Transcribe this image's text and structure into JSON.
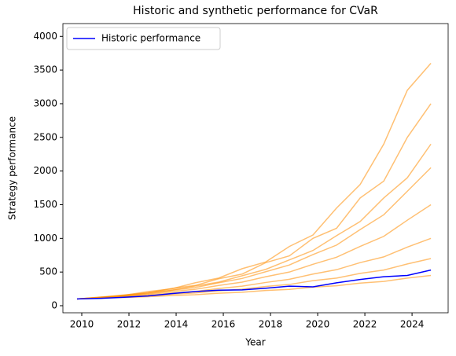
{
  "chart_data": {
    "type": "line",
    "title": "Historic and synthetic performance for CVaR",
    "x_label": "Year",
    "y_label": "Strategy performance",
    "x": [
      2009.8,
      2010.8,
      2011.8,
      2012.8,
      2013.8,
      2014.8,
      2015.8,
      2016.8,
      2017.8,
      2018.8,
      2019.8,
      2020.8,
      2021.8,
      2022.8,
      2023.8,
      2024.8
    ],
    "xlim": [
      2009.2,
      2025.53
    ],
    "xticks": [
      2010,
      2012,
      2014,
      2016,
      2018,
      2020,
      2022,
      2024
    ],
    "ylim": [
      -105,
      4190
    ],
    "yticks": [
      0,
      500,
      1000,
      1500,
      2000,
      2500,
      3000,
      3500,
      4000
    ],
    "legend": "upper left",
    "series": [
      {
        "color": "#ff8c00",
        "values": [
          100,
          130,
          155,
          210,
          250,
          340,
          410,
          550,
          650,
          880,
          1050,
          1450,
          1800,
          2400,
          3200,
          3600
        ]
      },
      {
        "color": "#ff8c00",
        "values": [
          100,
          122,
          160,
          190,
          255,
          300,
          400,
          470,
          640,
          740,
          1000,
          1150,
          1600,
          1850,
          2500,
          3000
        ]
      },
      {
        "color": "#ff8c00",
        "values": [
          100,
          124,
          150,
          192,
          230,
          292,
          350,
          445,
          540,
          680,
          820,
          1040,
          1250,
          1600,
          1900,
          2400
        ]
      },
      {
        "color": "#ff8c00",
        "values": [
          100,
          122,
          152,
          180,
          228,
          270,
          340,
          405,
          505,
          605,
          760,
          900,
          1130,
          1350,
          1700,
          2050
        ]
      },
      {
        "color": "#ff8c00",
        "values": [
          100,
          120,
          146,
          170,
          210,
          243,
          300,
          350,
          430,
          500,
          615,
          720,
          880,
          1030,
          1270,
          1500
        ]
      },
      {
        "color": "#ff8c00",
        "values": [
          100,
          117,
          138,
          156,
          188,
          212,
          255,
          290,
          345,
          392,
          470,
          535,
          640,
          725,
          870,
          1000
        ]
      },
      {
        "color": "#ff8c00",
        "values": [
          100,
          114,
          131,
          146,
          170,
          189,
          221,
          245,
          286,
          316,
          372,
          410,
          480,
          530,
          620,
          700
        ]
      },
      {
        "color": "#ff8c00",
        "values": [
          100,
          111,
          123,
          134,
          151,
          163,
          185,
          200,
          226,
          242,
          276,
          296,
          336,
          360,
          410,
          450
        ]
      },
      {
        "name": "Historic performance",
        "color": "#0000ff",
        "values": [
          100,
          110,
          125,
          145,
          180,
          210,
          230,
          235,
          260,
          290,
          280,
          340,
          390,
          430,
          450,
          530
        ]
      }
    ]
  }
}
